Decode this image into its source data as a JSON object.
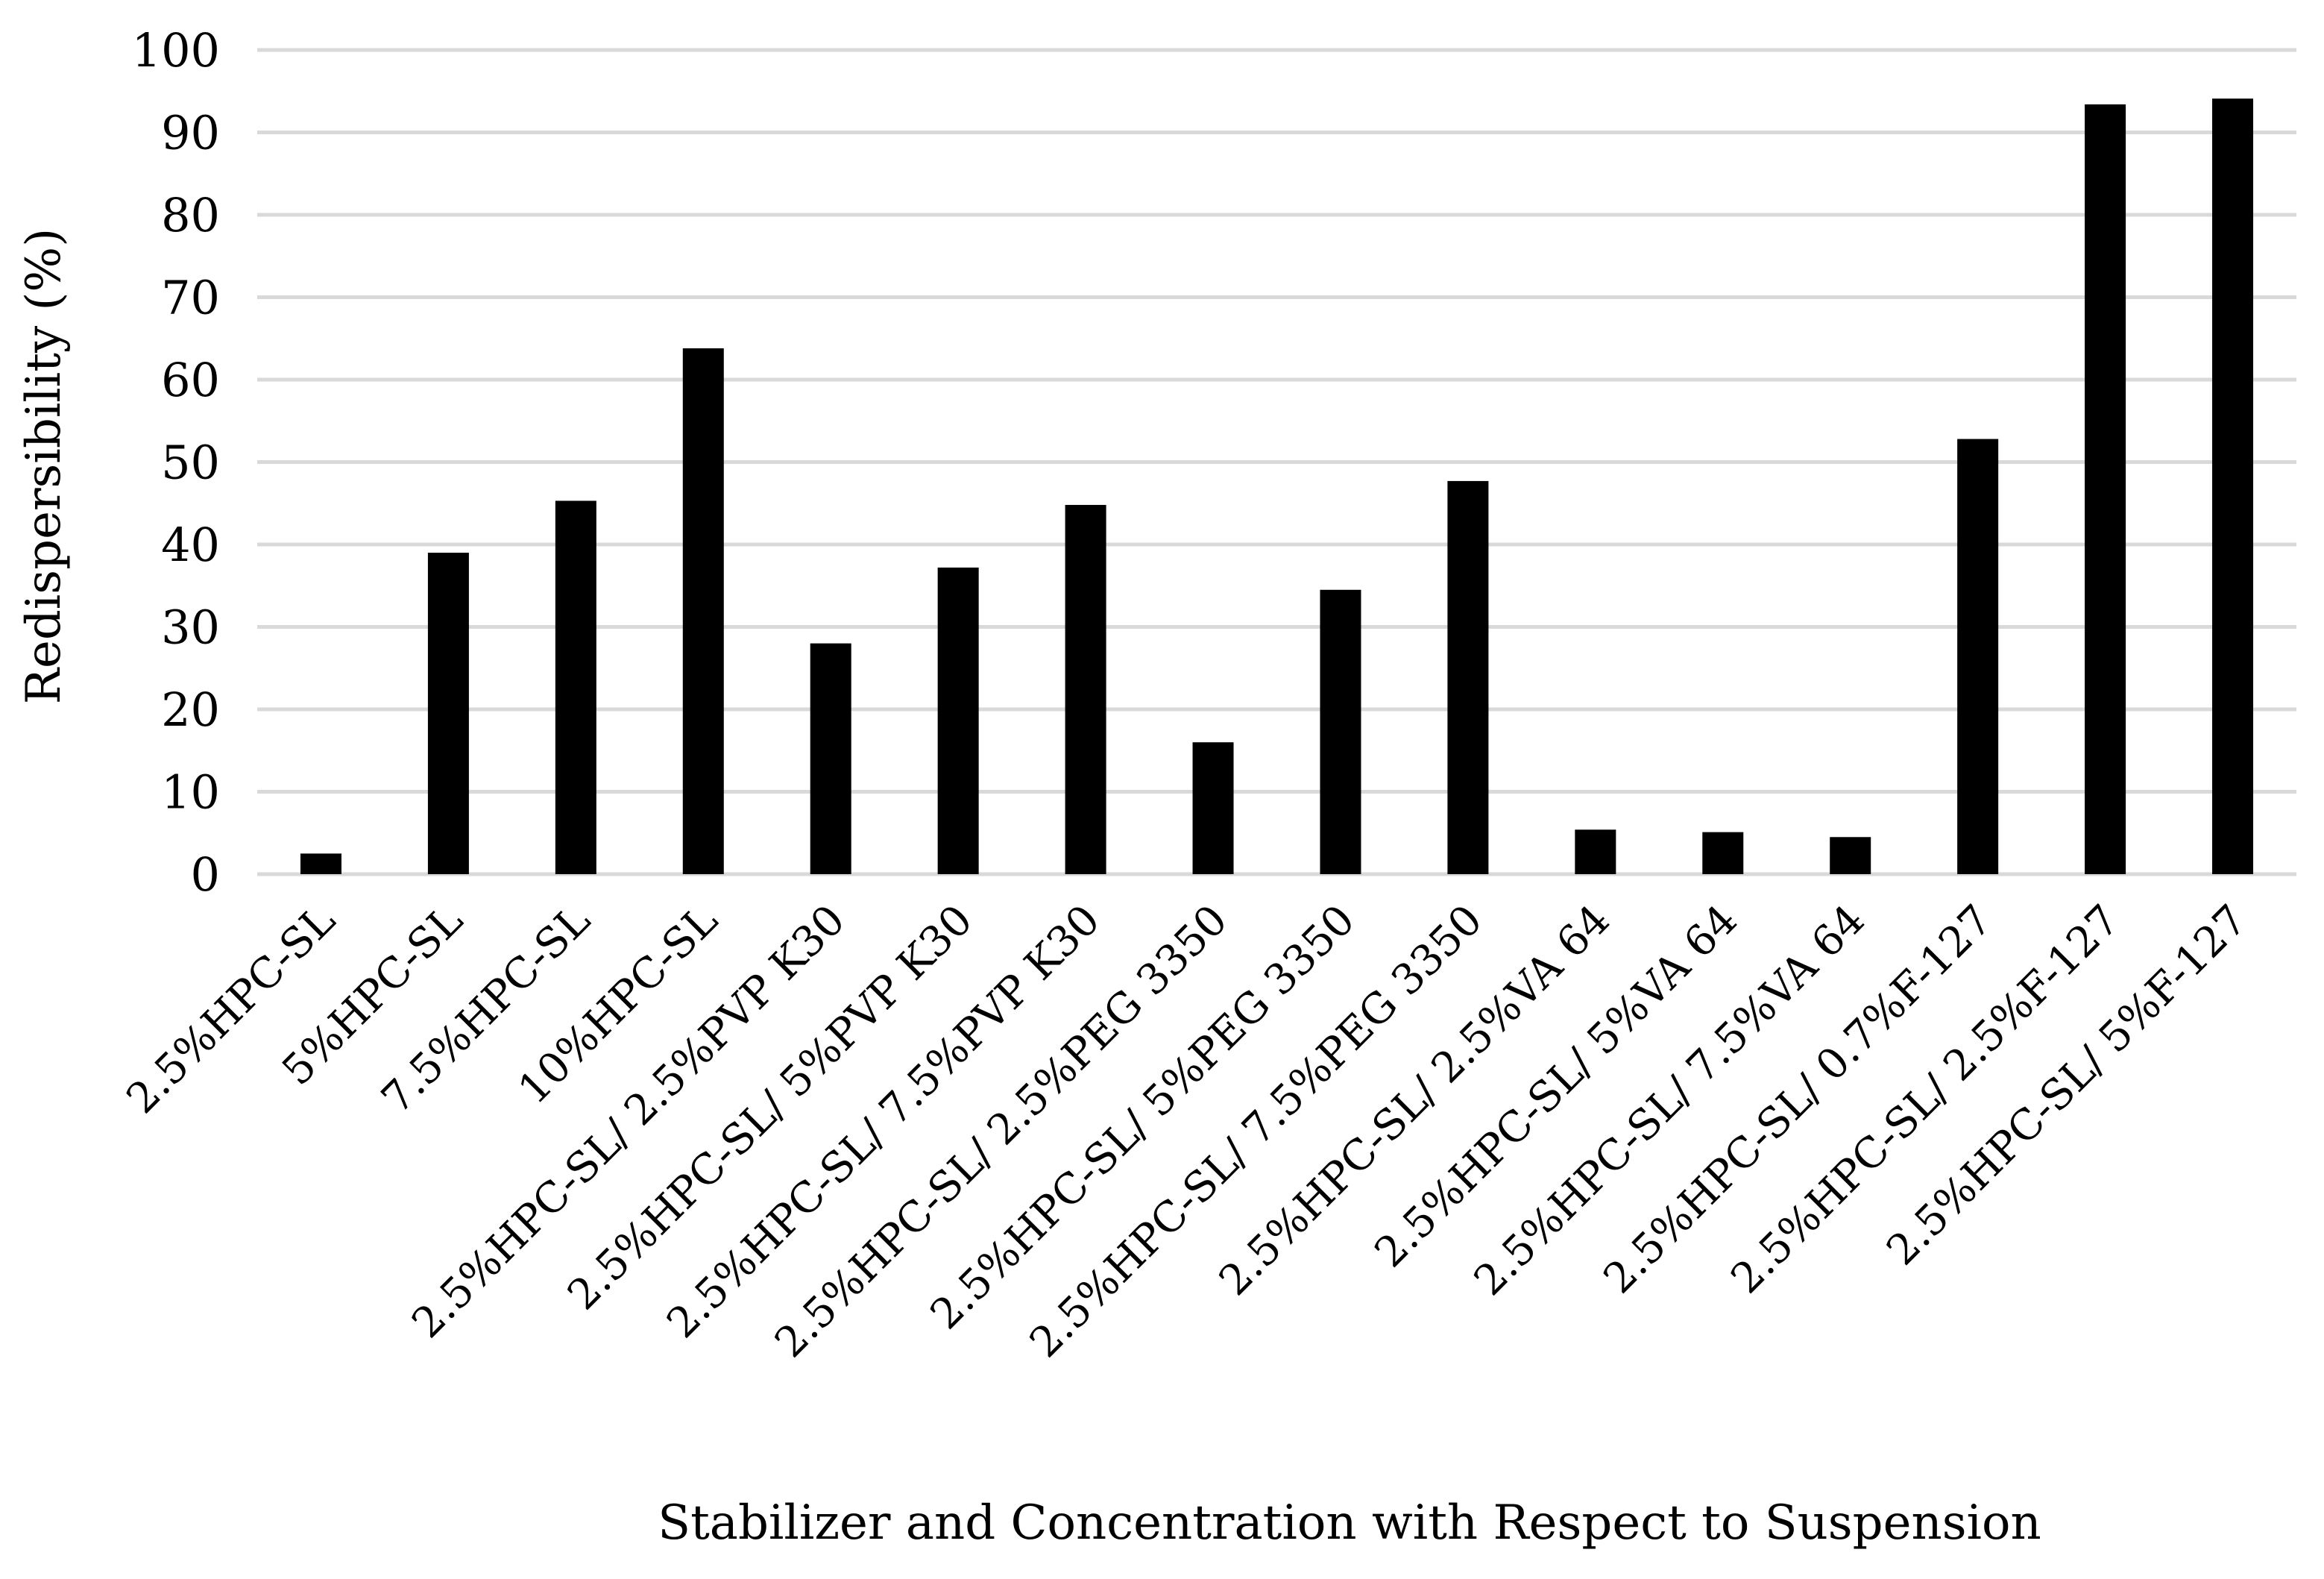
{
  "chart_data": {
    "type": "bar",
    "title": "",
    "xlabel": "Stabilizer and Concentration with Respect to Suspension",
    "ylabel": "Redispersibility (%)",
    "ylim": [
      0,
      100
    ],
    "yticks": [
      0,
      10,
      20,
      30,
      40,
      50,
      60,
      70,
      80,
      90,
      100
    ],
    "grid": true,
    "legend": "none",
    "bar_color": "#000000",
    "grid_color": "#d9d9d9",
    "categories": [
      "2.5%HPC-SL",
      "5%HPC-SL",
      "7.5%HPC-SL",
      "10%HPC-SL",
      "2.5%HPC-SL/ 2.5%PVP K30",
      "2.5%HPC-SL/ 5%PVP K30",
      "2.5%HPC-SL/ 7.5%PVP K30",
      "2.5%HPC-SL/ 2.5%PEG 3350",
      "2.5%HPC-SL/ 5%PEG 3350",
      "2.5%HPC-SL/ 7.5%PEG 3350",
      "2.5%HPC-SL/ 2.5%VA 64",
      "2.5%HPC-SL/ 5%VA 64",
      "2.5%HPC-SL/ 7.5%VA 64",
      "2.5%HPC-SL/ 0.7%F-127",
      "2.5%HPC-SL/ 2.5%F-127",
      "2.5%HPC-SL/ 5%F-127"
    ],
    "values": [
      2.5,
      39,
      45.3,
      63.8,
      28,
      37.2,
      44.8,
      16,
      34.5,
      47.7,
      5.4,
      5.1,
      4.5,
      52.8,
      93.4,
      94.1
    ]
  }
}
